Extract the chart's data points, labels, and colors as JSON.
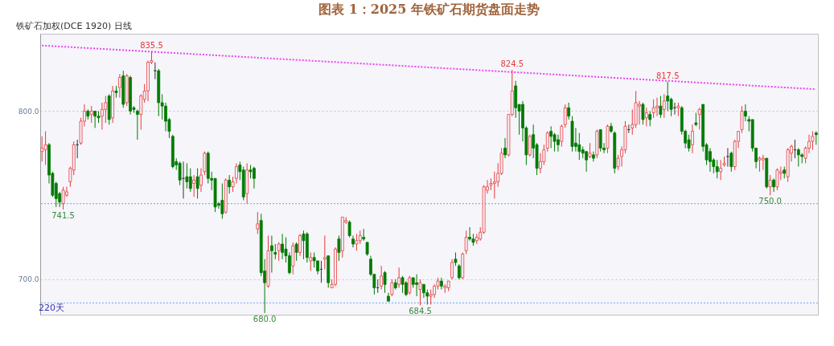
{
  "chart_data": {
    "type": "candlestick",
    "title": "图表 1：2025 年铁矿石期货盘面走势",
    "categories": [
      null,
      null,
      null,
      null,
      null,
      null,
      null,
      null,
      null,
      null,
      null,
      null,
      null,
      null,
      null,
      null,
      null,
      null,
      null,
      null,
      null,
      null,
      null,
      null,
      null,
      null,
      null,
      null,
      null,
      null,
      null,
      null,
      null,
      null,
      null,
      null,
      null,
      null,
      null,
      null,
      null,
      null,
      null,
      null,
      null,
      null,
      null,
      null,
      null,
      null,
      null,
      null,
      null,
      null,
      null,
      null,
      null,
      null,
      null,
      null,
      null,
      null,
      null,
      null,
      null,
      null,
      null,
      null,
      null,
      null,
      null,
      null,
      null,
      null,
      null,
      null,
      null,
      null,
      null,
      null,
      null,
      null,
      null,
      null,
      null,
      null,
      null,
      null,
      null,
      null,
      null,
      null,
      null,
      null,
      null,
      null,
      null,
      null,
      null,
      null,
      null,
      null,
      null,
      null,
      null,
      null,
      null,
      null,
      null,
      null,
      null,
      null,
      null,
      null,
      null,
      null,
      null,
      null,
      null,
      null,
      null,
      null,
      null,
      null,
      null,
      null,
      null,
      null,
      null,
      null,
      null,
      null,
      null,
      null,
      null,
      null,
      null,
      null,
      null,
      null,
      null,
      null,
      null,
      null,
      null,
      null,
      null,
      null,
      null,
      null,
      null,
      null,
      null,
      null,
      null,
      null,
      null,
      null,
      null,
      null,
      null,
      null,
      null,
      null,
      null,
      null,
      null,
      null,
      null,
      null,
      null,
      null,
      null,
      null,
      null,
      null,
      null,
      null,
      null,
      null,
      null,
      null,
      null,
      null,
      null,
      null,
      null,
      null,
      null,
      null,
      null,
      null,
      null,
      null,
      null,
      null,
      null,
      null,
      null,
      null,
      null,
      null,
      null,
      null,
      null,
      null,
      null,
      null,
      null,
      null,
      null,
      null,
      null,
      null,
      null,
      null,
      null,
      null,
      null,
      null
    ],
    "ohlc": [
      [
        776,
        785,
        770,
        778
      ],
      [
        777,
        788,
        768,
        780
      ],
      [
        780,
        781,
        757,
        762
      ],
      [
        763,
        764,
        749,
        750
      ],
      [
        757,
        758,
        743,
        748
      ],
      [
        751,
        752,
        743,
        746
      ],
      [
        745,
        755,
        741.5,
        753
      ],
      [
        750,
        755,
        749,
        752
      ],
      [
        758,
        767,
        755,
        766
      ],
      [
        765,
        782,
        762,
        780
      ],
      [
        780,
        783,
        772,
        780
      ],
      [
        781,
        796,
        780,
        794
      ],
      [
        794,
        804,
        791,
        800
      ],
      [
        800,
        801,
        795,
        797
      ],
      [
        798,
        803,
        793,
        800
      ],
      [
        800,
        800,
        790,
        797
      ],
      [
        797,
        800,
        793,
        796
      ],
      [
        797,
        805,
        789,
        801
      ],
      [
        801,
        809,
        793,
        805
      ],
      [
        809,
        810,
        792,
        795
      ],
      [
        796,
        815,
        793,
        812
      ],
      [
        812,
        815,
        808,
        811
      ],
      [
        814,
        822,
        808,
        820
      ],
      [
        821,
        824,
        802,
        804
      ],
      [
        805,
        822,
        803,
        821
      ],
      [
        820,
        821,
        798,
        800
      ],
      [
        802,
        803,
        799,
        801
      ],
      [
        800,
        801,
        783,
        798
      ],
      [
        798,
        810,
        789,
        809
      ],
      [
        807,
        816,
        805,
        812
      ],
      [
        812,
        830,
        806,
        829
      ],
      [
        829,
        835.5,
        828,
        830
      ],
      [
        824,
        829,
        819,
        824
      ],
      [
        824,
        825,
        797,
        805
      ],
      [
        805,
        810,
        795,
        803
      ],
      [
        803,
        805,
        788,
        794
      ],
      [
        795,
        796,
        784,
        788
      ],
      [
        785,
        786,
        766,
        767
      ],
      [
        770,
        772,
        765,
        768
      ],
      [
        769,
        770,
        756,
        759
      ],
      [
        760,
        770,
        748,
        760
      ],
      [
        761,
        769,
        754,
        758
      ],
      [
        761,
        766,
        752,
        754
      ],
      [
        757,
        762,
        749,
        759
      ],
      [
        761,
        766,
        748,
        754
      ],
      [
        756,
        766,
        752,
        762
      ],
      [
        764,
        776,
        762,
        775
      ],
      [
        775,
        776,
        757,
        760
      ],
      [
        760,
        764,
        753,
        759
      ],
      [
        760,
        760,
        740,
        743
      ],
      [
        745,
        746,
        742,
        744
      ],
      [
        747,
        757,
        736,
        739
      ],
      [
        740,
        760,
        739,
        759
      ],
      [
        759,
        762,
        751,
        755
      ],
      [
        755,
        761,
        752,
        758
      ],
      [
        760,
        769,
        757,
        767
      ],
      [
        768,
        770,
        759,
        764
      ],
      [
        765,
        767,
        747,
        749
      ],
      [
        751,
        769,
        745,
        765
      ],
      [
        765,
        768,
        760,
        764
      ],
      [
        766,
        767,
        754,
        760
      ],
      [
        730,
        740,
        727,
        733
      ],
      [
        735,
        739,
        702,
        704
      ],
      [
        705,
        712,
        680,
        698
      ],
      [
        696,
        726,
        695,
        717
      ],
      [
        720,
        726,
        704,
        717
      ],
      [
        716,
        721,
        712,
        715
      ],
      [
        717,
        722,
        711,
        721
      ],
      [
        721,
        727,
        712,
        716
      ],
      [
        718,
        725,
        710,
        714
      ],
      [
        714,
        716,
        703,
        704
      ],
      [
        708,
        722,
        703,
        720
      ],
      [
        721,
        722,
        711,
        716
      ],
      [
        716,
        727,
        714,
        726
      ],
      [
        727,
        729,
        712,
        723
      ],
      [
        727,
        728,
        710,
        713
      ],
      [
        711,
        716,
        705,
        713
      ],
      [
        713,
        716,
        707,
        711
      ],
      [
        711,
        711,
        703,
        705
      ],
      [
        706,
        711,
        698,
        706
      ],
      [
        712,
        726,
        706,
        713
      ],
      [
        714,
        714,
        695,
        698
      ],
      [
        695,
        700,
        695,
        697
      ],
      [
        697,
        719,
        696,
        718
      ],
      [
        724,
        726,
        711,
        716
      ],
      [
        717,
        737,
        713,
        737
      ],
      [
        734,
        737,
        733,
        735
      ],
      [
        734,
        735,
        725,
        726
      ],
      [
        724,
        726,
        719,
        721
      ],
      [
        721,
        727,
        717,
        723
      ],
      [
        723,
        729,
        721,
        726
      ],
      [
        725,
        730,
        723,
        724
      ],
      [
        722,
        722,
        714,
        715
      ],
      [
        712,
        714,
        702,
        703
      ],
      [
        703,
        703,
        691,
        695
      ],
      [
        695,
        700,
        692,
        695
      ],
      [
        696,
        708,
        694,
        702
      ],
      [
        704,
        705,
        692,
        697
      ],
      [
        690,
        692,
        687,
        687
      ],
      [
        691,
        700,
        690,
        698
      ],
      [
        698,
        700,
        694,
        695
      ],
      [
        697,
        707,
        695,
        701
      ],
      [
        701,
        702,
        692,
        697
      ],
      [
        698,
        699,
        690,
        691
      ],
      [
        692,
        702,
        691,
        701
      ],
      [
        701,
        701,
        695,
        697
      ],
      [
        698,
        703,
        690,
        697
      ],
      [
        694,
        700,
        684.5,
        698
      ],
      [
        697,
        697,
        689,
        692
      ],
      [
        692,
        694,
        685,
        690
      ],
      [
        690,
        694,
        685,
        691
      ],
      [
        691,
        697,
        689,
        696
      ],
      [
        696,
        701,
        694,
        699
      ],
      [
        699,
        701,
        694,
        696
      ],
      [
        695,
        697,
        692,
        696
      ],
      [
        695,
        699,
        693,
        699
      ],
      [
        701,
        712,
        700,
        710
      ],
      [
        712,
        716,
        708,
        710
      ],
      [
        708,
        709,
        700,
        701
      ],
      [
        701,
        716,
        700,
        715
      ],
      [
        717,
        729,
        715,
        725
      ],
      [
        725,
        731,
        723,
        724
      ],
      [
        724,
        727,
        720,
        722
      ],
      [
        723,
        727,
        721,
        725
      ],
      [
        724,
        731,
        723,
        728
      ],
      [
        728,
        756,
        727,
        755
      ],
      [
        753,
        759,
        751,
        755
      ],
      [
        756,
        760,
        753,
        757
      ],
      [
        757,
        764,
        748,
        758
      ],
      [
        758,
        769,
        755,
        763
      ],
      [
        763,
        778,
        762,
        775
      ],
      [
        778,
        784,
        772,
        774
      ],
      [
        774,
        798,
        773,
        798
      ],
      [
        798,
        824.5,
        797,
        812
      ],
      [
        815,
        818,
        796,
        802
      ],
      [
        804,
        804,
        786,
        800
      ],
      [
        804,
        806,
        782,
        790
      ],
      [
        790,
        791,
        768,
        774
      ],
      [
        774,
        786,
        773,
        785
      ],
      [
        786,
        792,
        772,
        778
      ],
      [
        780,
        781,
        762,
        766
      ],
      [
        766,
        775,
        763,
        770
      ],
      [
        770,
        780,
        768,
        777
      ],
      [
        778,
        788,
        776,
        787
      ],
      [
        788,
        791,
        778,
        785
      ],
      [
        786,
        787,
        776,
        782
      ],
      [
        783,
        786,
        776,
        780
      ],
      [
        782,
        792,
        779,
        791
      ],
      [
        792,
        804,
        790,
        802
      ],
      [
        802,
        805,
        795,
        797
      ],
      [
        794,
        797,
        776,
        779
      ],
      [
        781,
        790,
        776,
        779
      ],
      [
        780,
        787,
        771,
        776
      ],
      [
        777,
        779,
        772,
        775
      ],
      [
        776,
        776,
        764,
        771
      ],
      [
        773,
        781,
        772,
        775
      ],
      [
        774,
        776,
        770,
        772
      ],
      [
        774,
        789,
        772,
        788
      ],
      [
        789,
        789,
        776,
        778
      ],
      [
        778,
        781,
        775,
        777
      ],
      [
        778,
        792,
        775,
        791
      ],
      [
        791,
        793,
        787,
        788
      ],
      [
        787,
        788,
        763,
        766
      ],
      [
        767,
        774,
        765,
        772
      ],
      [
        773,
        779,
        767,
        777
      ],
      [
        777,
        794,
        775,
        791
      ],
      [
        789,
        792,
        787,
        789
      ],
      [
        790,
        801,
        786,
        792
      ],
      [
        792,
        812,
        790,
        805
      ],
      [
        803,
        806,
        792,
        804
      ],
      [
        804,
        805,
        792,
        795
      ],
      [
        796,
        802,
        791,
        799
      ],
      [
        798,
        800,
        791,
        795
      ],
      [
        799,
        807,
        796,
        802
      ],
      [
        802,
        808,
        797,
        803
      ],
      [
        803,
        809,
        796,
        798
      ],
      [
        801,
        810,
        796,
        806
      ],
      [
        809,
        817.5,
        800,
        806
      ],
      [
        807,
        808,
        797,
        801
      ],
      [
        802,
        805,
        798,
        802
      ],
      [
        802,
        805,
        797,
        803
      ],
      [
        802,
        803,
        786,
        788
      ],
      [
        788,
        789,
        778,
        781
      ],
      [
        783,
        786,
        776,
        778
      ],
      [
        780,
        792,
        775,
        788
      ],
      [
        793,
        799,
        791,
        792
      ],
      [
        798,
        802,
        789,
        801
      ],
      [
        804,
        804,
        776,
        779
      ],
      [
        780,
        781,
        768,
        771
      ],
      [
        776,
        778,
        764,
        770
      ],
      [
        771,
        772,
        763,
        767
      ],
      [
        767,
        771,
        760,
        764
      ],
      [
        764,
        771,
        759,
        766
      ],
      [
        768,
        773,
        767,
        769
      ],
      [
        773,
        778,
        767,
        773
      ],
      [
        775,
        776,
        764,
        767
      ],
      [
        767,
        783,
        765,
        782
      ],
      [
        782,
        788,
        778,
        788
      ],
      [
        789,
        803,
        787,
        800
      ],
      [
        800,
        804,
        794,
        797
      ],
      [
        795,
        797,
        788,
        794
      ],
      [
        795,
        795,
        776,
        778
      ],
      [
        778,
        778,
        766,
        770
      ],
      [
        771,
        773,
        764,
        772
      ],
      [
        771,
        774,
        765,
        772
      ],
      [
        772,
        772,
        754,
        755
      ],
      [
        755,
        762,
        750,
        759
      ],
      [
        759,
        760,
        752,
        755
      ],
      [
        755,
        766,
        753,
        765
      ],
      [
        763,
        767,
        759,
        764
      ],
      [
        765,
        767,
        760,
        763
      ],
      [
        761,
        778,
        758,
        777
      ],
      [
        775,
        780,
        770,
        779
      ],
      [
        777,
        783,
        772,
        777
      ],
      [
        777,
        778,
        767,
        774
      ],
      [
        774,
        775,
        769,
        773
      ],
      [
        772,
        779,
        769,
        778
      ],
      [
        778,
        786,
        775,
        782
      ],
      [
        782,
        788,
        777,
        785
      ],
      [
        787,
        788,
        780,
        786
      ]
    ],
    "series": [
      {
        "type": "line",
        "color": "#ee44ee",
        "line_style": "dotted",
        "values": [
          839,
          null,
          null,
          null,
          null,
          null,
          null,
          null,
          null,
          null,
          null,
          null,
          null,
          null,
          null,
          null,
          null,
          null,
          null,
          null,
          null,
          null,
          null,
          null,
          null,
          null,
          null,
          null,
          null,
          null,
          null,
          null,
          null,
          null,
          null,
          null,
          null,
          null,
          null,
          null,
          null,
          null,
          null,
          null,
          null,
          null,
          null,
          null,
          null,
          null,
          null,
          null,
          null,
          null,
          null,
          null,
          null,
          null,
          null,
          null,
          null,
          null,
          null,
          null,
          null,
          null,
          null,
          null,
          null,
          null,
          null,
          null,
          null,
          null,
          null,
          null,
          null,
          null,
          null,
          null,
          null,
          null,
          null,
          null,
          null,
          null,
          null,
          null,
          null,
          null,
          null,
          null,
          null,
          null,
          null,
          null,
          null,
          null,
          null,
          null,
          null,
          null,
          null,
          null,
          null,
          null,
          null,
          null,
          null,
          null,
          null,
          null,
          null,
          null,
          null,
          null,
          null,
          null,
          null,
          null,
          null,
          null,
          null,
          null,
          null,
          null,
          null,
          null,
          null,
          null,
          null,
          null,
          null,
          null,
          null,
          null,
          null,
          null,
          null,
          null,
          null,
          null,
          null,
          null,
          null,
          null,
          null,
          null,
          null,
          null,
          null,
          null,
          null,
          null,
          null,
          null,
          null,
          null,
          null,
          null,
          null,
          null,
          null,
          null,
          null,
          null,
          null,
          null,
          null,
          null,
          null,
          null,
          null,
          null,
          null,
          null,
          null,
          null,
          null,
          null,
          null,
          null,
          null,
          null,
          null,
          null,
          null,
          null,
          null,
          null,
          null,
          null,
          null,
          null,
          null,
          null,
          null,
          null,
          null,
          null,
          null,
          null,
          null,
          null,
          null,
          null,
          null,
          null,
          null,
          null,
          null,
          null,
          null,
          null,
          null,
          null,
          null,
          null,
          null,
          813
        ]
      }
    ],
    "ylim": [
      679,
      846
    ],
    "yticks": [
      {
        "value": 700,
        "label": "700.0"
      },
      {
        "value": 800,
        "label": "800.0"
      }
    ],
    "grid": "y",
    "ref_lines": [
      {
        "axis": "y",
        "value": 745,
        "color": "#66aaee",
        "line_style": "dotted"
      },
      {
        "axis": "y",
        "value": 686,
        "color": "#66aaee",
        "line_style": "dotted"
      }
    ],
    "annotations": [
      "铁矿石加权(DCE 1920)  日线",
      "220天",
      {
        "text": "835.5",
        "y": 835.5
      },
      {
        "text": "824.5",
        "y": 824.5
      },
      {
        "text": "817.5",
        "y": 817.5
      },
      {
        "text": "741.5",
        "y": 741.5
      },
      {
        "text": "680.0",
        "y": 680
      },
      {
        "text": "684.5",
        "y": 684.5
      },
      {
        "text": "750.0",
        "y": 750
      }
    ]
  }
}
